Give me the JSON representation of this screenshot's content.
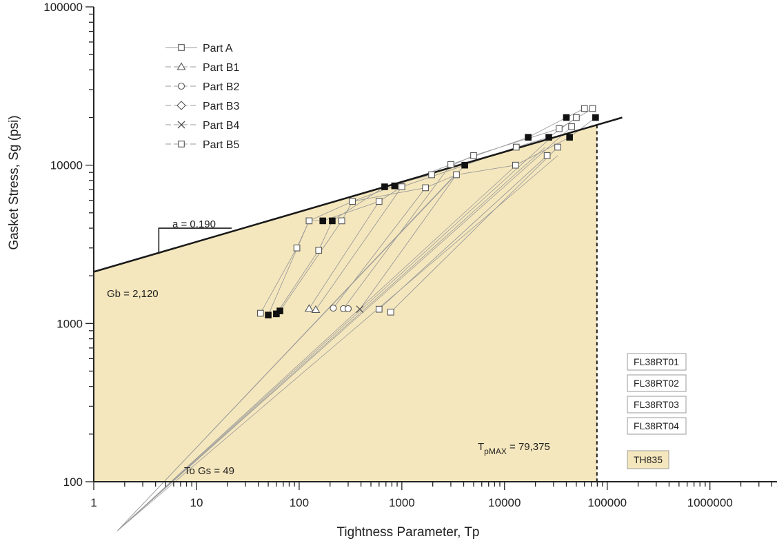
{
  "chart_data": {
    "type": "scatter",
    "x_scale": "log",
    "y_scale": "log",
    "xlim": [
      1,
      4500000
    ],
    "ylim": [
      100,
      100000
    ],
    "xlabel": "Tightness Parameter, Tp",
    "ylabel": "Gasket Stress, Sg (psi)",
    "x_ticks": [
      {
        "value": 1,
        "label": "1"
      },
      {
        "value": 10,
        "label": "10"
      },
      {
        "value": 100,
        "label": "100"
      },
      {
        "value": 1000,
        "label": "1000"
      },
      {
        "value": 10000,
        "label": "10000"
      },
      {
        "value": 100000,
        "label": "100000"
      },
      {
        "value": 1000000,
        "label": "1000000"
      }
    ],
    "y_ticks": [
      {
        "value": 100,
        "label": "100"
      },
      {
        "value": 1000,
        "label": "1000"
      },
      {
        "value": 10000,
        "label": "10000"
      },
      {
        "value": 100000,
        "label": "100000"
      }
    ],
    "legend": {
      "placement": "top-left",
      "entries": [
        {
          "name": "Part A",
          "marker": "square"
        },
        {
          "name": "Part B1",
          "marker": "triangle"
        },
        {
          "name": "Part B2",
          "marker": "circle"
        },
        {
          "name": "Part B3",
          "marker": "diamond"
        },
        {
          "name": "Part B4",
          "marker": "cross"
        },
        {
          "name": "Part B5",
          "marker": "square"
        }
      ]
    },
    "fit_line": {
      "from": {
        "x": 1,
        "y": 2120
      },
      "to": {
        "x": 140000,
        "y": 20000
      }
    },
    "slope_label": "a = 0.190",
    "slope_triangle": {
      "x1": 4.3,
      "x2": 22,
      "y_low": 2750,
      "y_high": 4000
    },
    "gb_label": "Gb = 2,120",
    "gs_label": "To Gs = 49",
    "tpmax": {
      "value": 79375,
      "label_main": "T",
      "label_sub": "pMAX",
      "label_rest": " = 79,375"
    },
    "spokes_from": {
      "x": 1.7,
      "y": 49
    },
    "spoke_targets": [
      {
        "x": 25000,
        "y": 13000
      },
      {
        "x": 33000,
        "y": 11500
      },
      {
        "x": 45000,
        "y": 17500
      },
      {
        "x": 27000,
        "y": 14500
      },
      {
        "x": 13000,
        "y": 10000
      },
      {
        "x": 4000,
        "y": 9800
      },
      {
        "x": 3300,
        "y": 8700
      }
    ],
    "series": [
      {
        "marker": "open-square",
        "points": [
          {
            "x": 42,
            "y": 1160
          },
          {
            "x": 95,
            "y": 3000
          },
          {
            "x": 125,
            "y": 4450
          },
          {
            "x": 155,
            "y": 2900
          },
          {
            "x": 260,
            "y": 4450
          },
          {
            "x": 330,
            "y": 5900
          },
          {
            "x": 600,
            "y": 5900
          },
          {
            "x": 1000,
            "y": 7300
          },
          {
            "x": 1700,
            "y": 7200
          },
          {
            "x": 1950,
            "y": 8700
          },
          {
            "x": 3000,
            "y": 10100
          },
          {
            "x": 3400,
            "y": 8700
          },
          {
            "x": 5000,
            "y": 11500
          },
          {
            "x": 12800,
            "y": 10000
          },
          {
            "x": 13000,
            "y": 13000
          },
          {
            "x": 26000,
            "y": 11500
          },
          {
            "x": 33000,
            "y": 13000
          },
          {
            "x": 34000,
            "y": 17000
          },
          {
            "x": 45000,
            "y": 17500
          },
          {
            "x": 50000,
            "y": 20000
          },
          {
            "x": 60000,
            "y": 22800
          },
          {
            "x": 72000,
            "y": 22800
          },
          {
            "x": 600,
            "y": 1230
          },
          {
            "x": 780,
            "y": 1180
          }
        ]
      },
      {
        "marker": "filled-square",
        "points": [
          {
            "x": 50,
            "y": 1130
          },
          {
            "x": 60,
            "y": 1150
          },
          {
            "x": 65,
            "y": 1200
          },
          {
            "x": 170,
            "y": 4450
          },
          {
            "x": 210,
            "y": 4450
          },
          {
            "x": 680,
            "y": 7300
          },
          {
            "x": 850,
            "y": 7400
          },
          {
            "x": 4100,
            "y": 10000
          },
          {
            "x": 17000,
            "y": 15000
          },
          {
            "x": 27000,
            "y": 15000
          },
          {
            "x": 40000,
            "y": 20000
          },
          {
            "x": 43000,
            "y": 15000
          },
          {
            "x": 77000,
            "y": 20000
          }
        ]
      },
      {
        "marker": "triangle",
        "points": [
          {
            "x": 125,
            "y": 1240
          },
          {
            "x": 145,
            "y": 1220
          }
        ]
      },
      {
        "marker": "circle",
        "points": [
          {
            "x": 215,
            "y": 1250
          },
          {
            "x": 270,
            "y": 1240
          },
          {
            "x": 300,
            "y": 1240
          }
        ]
      },
      {
        "marker": "cross",
        "points": [
          {
            "x": 390,
            "y": 1230
          }
        ]
      }
    ],
    "connections": [
      [
        [
          42,
          1160
        ],
        [
          95,
          3000
        ],
        [
          125,
          4450
        ],
        [
          330,
          5900
        ],
        [
          850,
          7400
        ],
        [
          3000,
          10100
        ],
        [
          17000,
          15000
        ],
        [
          40000,
          20000
        ],
        [
          60000,
          22800
        ]
      ],
      [
        [
          50,
          1130
        ],
        [
          125,
          4450
        ],
        [
          170,
          4450
        ],
        [
          600,
          5900
        ],
        [
          1000,
          7300
        ],
        [
          4100,
          10000
        ],
        [
          13000,
          13000
        ],
        [
          27000,
          15000
        ],
        [
          50000,
          20000
        ]
      ],
      [
        [
          60,
          1150
        ],
        [
          155,
          2900
        ],
        [
          210,
          4450
        ],
        [
          680,
          7300
        ],
        [
          1950,
          8700
        ],
        [
          5000,
          11500
        ],
        [
          34000,
          17000
        ],
        [
          72000,
          22800
        ]
      ],
      [
        [
          65,
          1200
        ],
        [
          260,
          4450
        ],
        [
          330,
          5900
        ],
        [
          1700,
          7200
        ],
        [
          3400,
          8700
        ],
        [
          12800,
          10000
        ],
        [
          43000,
          15000
        ],
        [
          77000,
          20000
        ]
      ],
      [
        [
          125,
          1240
        ],
        [
          600,
          5900
        ]
      ],
      [
        [
          145,
          1220
        ],
        [
          1000,
          7300
        ]
      ],
      [
        [
          215,
          1250
        ],
        [
          1700,
          7200
        ]
      ],
      [
        [
          270,
          1240
        ],
        [
          3000,
          10100
        ]
      ],
      [
        [
          390,
          1230
        ],
        [
          3400,
          8700
        ]
      ],
      [
        [
          600,
          1230
        ],
        [
          26000,
          11500
        ]
      ],
      [
        [
          780,
          1180
        ],
        [
          33000,
          13000
        ]
      ]
    ]
  },
  "run_labels": [
    "FL38RT01",
    "FL38RT02",
    "FL38RT03",
    "FL38RT04"
  ],
  "material_label": "TH835",
  "colors": {
    "fill": "#f5e7bd",
    "line": "#1a1a1a",
    "connector": "#9a9a9a",
    "marker_edge": "#555555",
    "box_border": "#9a9a9a"
  }
}
